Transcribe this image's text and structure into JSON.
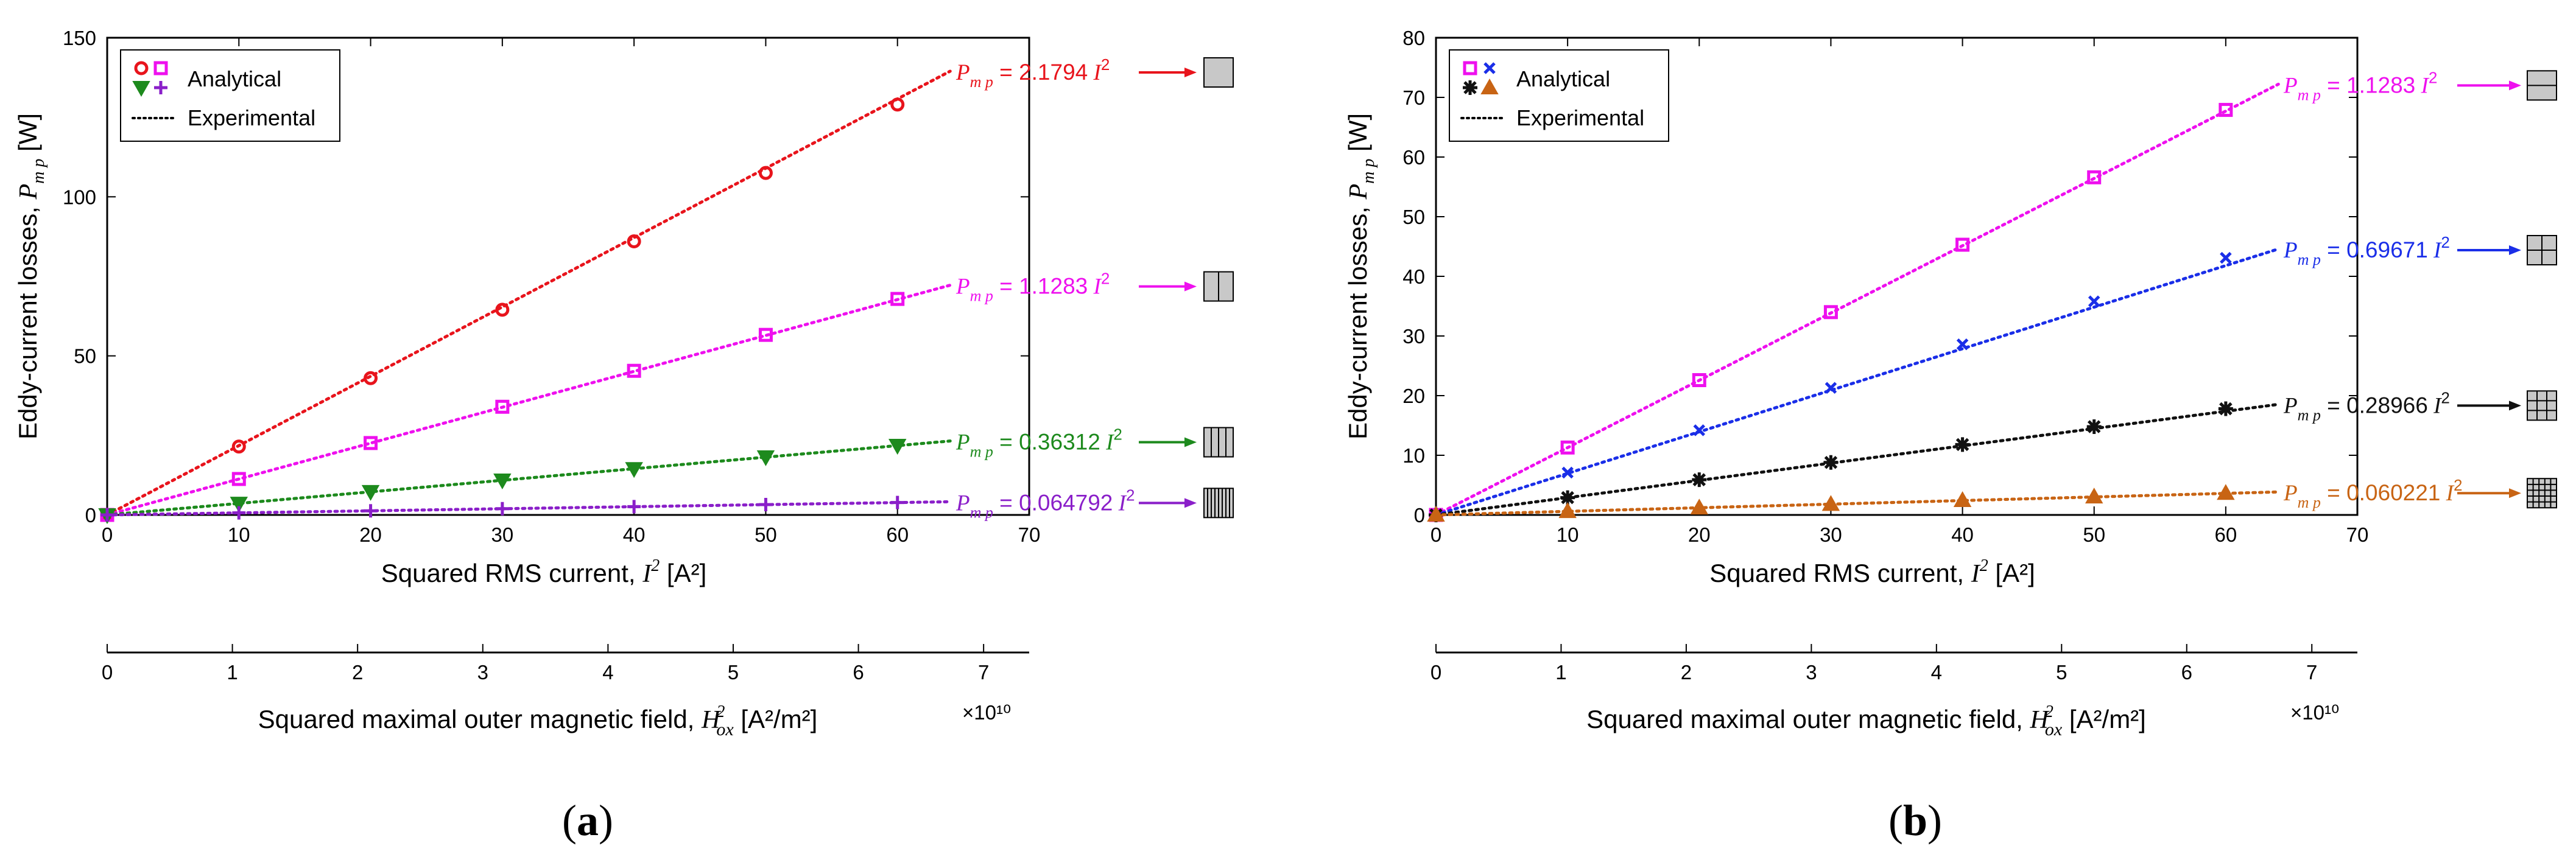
{
  "chart_data": [
    {
      "id": "a",
      "type": "scatter",
      "panel_label": "a",
      "ylabel_text": "Eddy-current losses,",
      "ylabel_symbol": "P",
      "ylabel_sub": "m p",
      "ylabel_unit": "[W]",
      "xlabel_text": "Squared RMS current,",
      "xlabel_symbol": "I",
      "xlabel_unit": "[A²]",
      "x2label_text": "Squared maximal outer magnetic field,",
      "x2label_symbol": "H",
      "x2label_sub": "ox",
      "x2label_unit": "[A²/m²]",
      "x2_exponent": "×10¹⁰",
      "xlim": [
        0,
        70
      ],
      "ylim": [
        0,
        150
      ],
      "xticks": [
        "0",
        "10",
        "20",
        "30",
        "40",
        "50",
        "60",
        "70"
      ],
      "yticks": [
        "0",
        "50",
        "100",
        "150"
      ],
      "x2lim": [
        0,
        7
      ],
      "x2_per_x": 0.1052,
      "x2ticks": [
        "0",
        "1",
        "2",
        "3",
        "4",
        "5",
        "6",
        "7"
      ],
      "legend": {
        "analytical": "Analytical",
        "experimental": "Experimental",
        "analytical_colors": [
          "#e8141c",
          "#ee10ee"
        ],
        "second_colors": [
          "#1d8a1d",
          "#8a1fc9"
        ]
      },
      "series": [
        {
          "name": "1 segment",
          "color": "#e8141c",
          "marker": "circle",
          "coef": 2.1794,
          "coef_label": "2.1794",
          "x": [
            0,
            10,
            20,
            30,
            40,
            50,
            60
          ],
          "values": [
            0,
            21.5,
            43,
            64.5,
            86,
            107.5,
            129
          ],
          "icon": "1x1"
        },
        {
          "name": "2 segments",
          "color": "#ee10ee",
          "marker": "square",
          "coef": 1.1283,
          "coef_label": "1.1283",
          "x": [
            0,
            10,
            20,
            30,
            40,
            50,
            60
          ],
          "values": [
            0,
            11.3,
            22.6,
            34,
            45.3,
            56.6,
            67.9
          ],
          "icon": "2x1"
        },
        {
          "name": "4 segments",
          "color": "#1d8a1d",
          "marker": "triangle-down",
          "coef": 0.36312,
          "coef_label": "0.36312",
          "x": [
            0,
            10,
            20,
            30,
            40,
            50,
            60
          ],
          "values": [
            0,
            3.6,
            7.3,
            10.9,
            14.5,
            18.2,
            21.8
          ],
          "icon": "4x1"
        },
        {
          "name": "8 segments",
          "color": "#8a1fc9",
          "marker": "plus",
          "coef": 0.064792,
          "coef_label": "0.064792",
          "x": [
            0,
            10,
            20,
            30,
            40,
            50,
            60
          ],
          "values": [
            0,
            0.65,
            1.3,
            1.95,
            2.6,
            3.25,
            3.9
          ],
          "icon": "8x1"
        }
      ]
    },
    {
      "id": "b",
      "type": "scatter",
      "panel_label": "b",
      "ylabel_text": "Eddy-current losses,",
      "ylabel_symbol": "P",
      "ylabel_sub": "m p",
      "ylabel_unit": "[W]",
      "xlabel_text": "Squared RMS current,",
      "xlabel_symbol": "I",
      "xlabel_unit": "[A²]",
      "x2label_text": "Squared maximal outer magnetic field,",
      "x2label_symbol": "H",
      "x2label_sub": "ox",
      "x2label_unit": "[A²/m²]",
      "x2_exponent": "×10¹⁰",
      "xlim": [
        0,
        70
      ],
      "ylim": [
        0,
        80
      ],
      "xticks": [
        "0",
        "10",
        "20",
        "30",
        "40",
        "50",
        "60",
        "70"
      ],
      "yticks": [
        "0",
        "10",
        "20",
        "30",
        "40",
        "50",
        "60",
        "70",
        "80"
      ],
      "x2lim": [
        0,
        7
      ],
      "x2_per_x": 0.1052,
      "x2ticks": [
        "0",
        "1",
        "2",
        "3",
        "4",
        "5",
        "6",
        "7"
      ],
      "legend": {
        "analytical": "Analytical",
        "experimental": "Experimental",
        "analytical_colors": [
          "#ee10ee",
          "#1a2ee8"
        ],
        "second_colors": [
          "#111111",
          "#c86414"
        ]
      },
      "series": [
        {
          "name": "1x2 segments",
          "color": "#ee10ee",
          "marker": "square",
          "coef": 1.1283,
          "coef_label": "1.1283",
          "x": [
            0,
            10,
            20,
            30,
            40,
            50,
            60
          ],
          "values": [
            0,
            11.3,
            22.6,
            34,
            45.3,
            56.6,
            67.9
          ],
          "icon": "1x2"
        },
        {
          "name": "2x2 segments",
          "color": "#1a2ee8",
          "marker": "x",
          "coef": 0.69671,
          "coef_label": "0.69671",
          "x": [
            0,
            10,
            20,
            30,
            40,
            50,
            60
          ],
          "values": [
            0,
            7.1,
            14.2,
            21.3,
            28.6,
            35.8,
            43.1
          ],
          "icon": "2x2"
        },
        {
          "name": "3x3 segments",
          "color": "#111111",
          "marker": "star",
          "coef": 0.28966,
          "coef_label": "0.28966",
          "x": [
            0,
            10,
            20,
            30,
            40,
            50,
            60
          ],
          "values": [
            0,
            2.9,
            5.9,
            8.8,
            11.8,
            14.8,
            17.8
          ],
          "icon": "3x3"
        },
        {
          "name": "5x5 segments",
          "color": "#c86414",
          "marker": "triangle-up",
          "coef": 0.060221,
          "coef_label": "0.060221",
          "x": [
            0,
            10,
            20,
            30,
            40,
            50,
            60
          ],
          "values": [
            0,
            0.6,
            1.2,
            1.8,
            2.45,
            3.05,
            3.65
          ],
          "icon": "5x5"
        }
      ]
    }
  ]
}
